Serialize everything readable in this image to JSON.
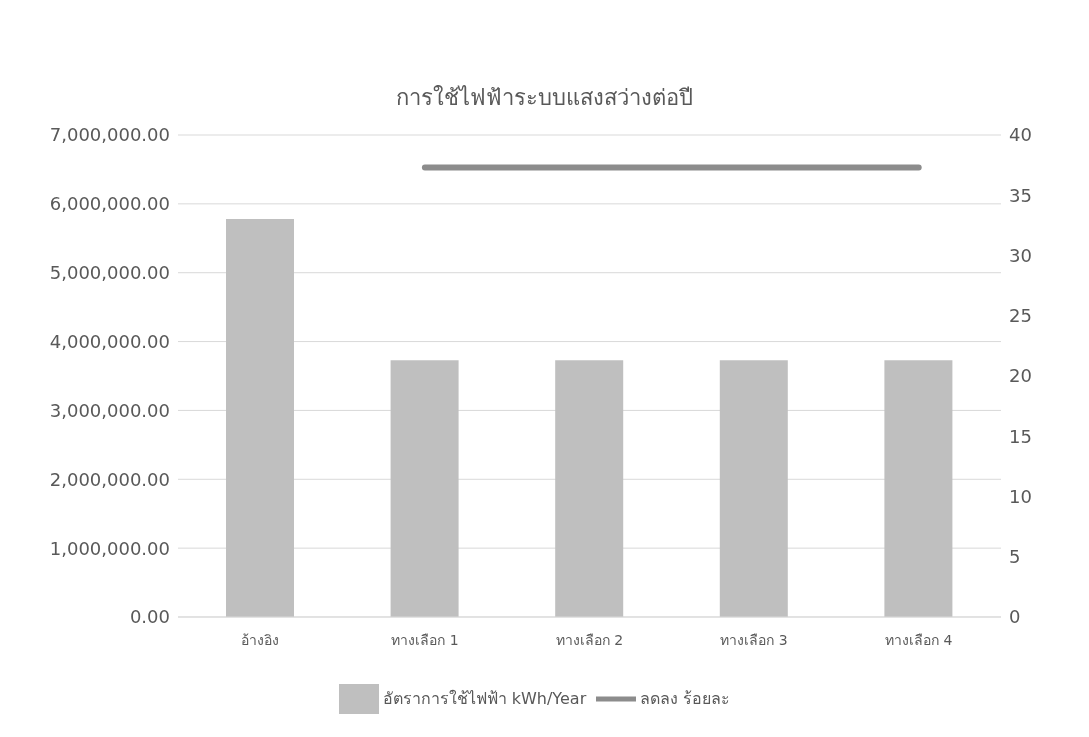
{
  "chart_data": {
    "type": "bar",
    "title": "การใช้ไฟฟ้าระบบแสงสว่างต่อปี",
    "categories": [
      "อ้างอิง",
      "ทางเลือก 1",
      "ทางเลือก 2",
      "ทางเลือก 3",
      "ทางเลือก 4"
    ],
    "series": [
      {
        "name": "อัตราการใช้ไฟฟ้า kWh/Year",
        "color": "#bfbfbf",
        "values": [
          5780000,
          3730000,
          3730000,
          3730000,
          3730000
        ]
      },
      {
        "name": "ลดลง ร้อยละ",
        "type": "line",
        "axis": "y2",
        "color": "#8c8c8c",
        "values": [
          null,
          37.3,
          37.3,
          37.3,
          37.3
        ]
      }
    ],
    "ylim": [
      0,
      7000000
    ],
    "yticks": [
      {
        "value": 0,
        "label": "0.00"
      },
      {
        "value": 1000000,
        "label": "1,000,000.00"
      },
      {
        "value": 2000000,
        "label": "2,000,000.00"
      },
      {
        "value": 3000000,
        "label": "3,000,000.00"
      },
      {
        "value": 4000000,
        "label": "4,000,000.00"
      },
      {
        "value": 5000000,
        "label": "5,000,000.00"
      },
      {
        "value": 6000000,
        "label": "6,000,000.00"
      },
      {
        "value": 7000000,
        "label": "7,000,000.00"
      }
    ],
    "y2lim": [
      0,
      40
    ],
    "y2ticks": [
      0,
      5,
      10,
      15,
      20,
      25,
      30,
      35,
      40
    ],
    "grid": "y",
    "legend": "bottom",
    "marker": "none",
    "line_style": "solid"
  }
}
